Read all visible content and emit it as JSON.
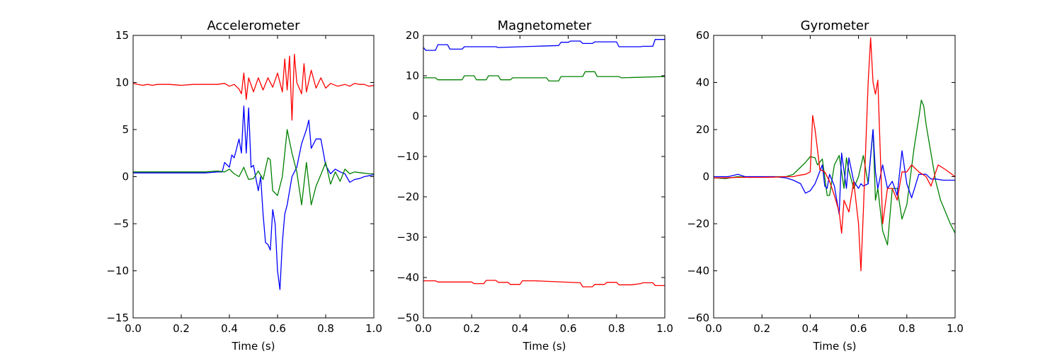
{
  "chart_data": [
    {
      "type": "line",
      "title": "Accelerometer",
      "xlabel": "Time (s)",
      "ylabel": "",
      "xlim": [
        0,
        1
      ],
      "ylim": [
        -15,
        15
      ],
      "xticks": [
        "0.0",
        "0.2",
        "0.4",
        "0.6",
        "0.8",
        "1.0"
      ],
      "yticks": [
        "15",
        "10",
        "5",
        "0",
        "−5",
        "−10",
        "−15"
      ],
      "grid": false,
      "series": [
        {
          "color": "#ff0000",
          "x": [
            0.0,
            0.02,
            0.04,
            0.06,
            0.08,
            0.1,
            0.15,
            0.2,
            0.25,
            0.3,
            0.35,
            0.38,
            0.4,
            0.42,
            0.44,
            0.45,
            0.46,
            0.47,
            0.48,
            0.5,
            0.52,
            0.54,
            0.56,
            0.58,
            0.6,
            0.62,
            0.63,
            0.64,
            0.65,
            0.66,
            0.67,
            0.68,
            0.7,
            0.71,
            0.72,
            0.74,
            0.76,
            0.78,
            0.8,
            0.82,
            0.85,
            0.88,
            0.9,
            0.92,
            0.94,
            0.96,
            0.98,
            1.0
          ],
          "y": [
            9.9,
            9.8,
            9.7,
            9.8,
            9.7,
            9.8,
            9.8,
            9.7,
            9.8,
            9.8,
            9.8,
            9.9,
            9.6,
            9.8,
            9.3,
            8.8,
            11.0,
            8.2,
            10.5,
            9.0,
            10.5,
            9.2,
            10.5,
            9.5,
            11.0,
            9.0,
            12.5,
            9.2,
            12.8,
            6.0,
            13.0,
            10.0,
            8.8,
            12.0,
            9.0,
            11.3,
            9.4,
            10.5,
            9.4,
            9.9,
            9.6,
            9.8,
            9.6,
            9.9,
            9.8,
            9.8,
            9.6,
            9.7
          ]
        },
        {
          "color": "#0000ff",
          "x": [
            0.0,
            0.05,
            0.1,
            0.15,
            0.2,
            0.25,
            0.3,
            0.35,
            0.37,
            0.38,
            0.4,
            0.41,
            0.42,
            0.44,
            0.45,
            0.46,
            0.47,
            0.48,
            0.49,
            0.5,
            0.52,
            0.53,
            0.54,
            0.55,
            0.56,
            0.57,
            0.58,
            0.59,
            0.6,
            0.61,
            0.62,
            0.63,
            0.64,
            0.65,
            0.66,
            0.68,
            0.7,
            0.72,
            0.73,
            0.74,
            0.76,
            0.78,
            0.8,
            0.82,
            0.84,
            0.86,
            0.88,
            0.9,
            0.92,
            0.94,
            0.96,
            0.98,
            1.0
          ],
          "y": [
            0.4,
            0.4,
            0.4,
            0.4,
            0.4,
            0.4,
            0.4,
            0.5,
            0.5,
            1.5,
            1.0,
            2.3,
            2.0,
            4.0,
            2.5,
            7.5,
            2.5,
            7.3,
            1.0,
            1.2,
            -1.5,
            0.0,
            -4.0,
            -7.0,
            -7.2,
            -7.8,
            -3.5,
            -5.0,
            -10.0,
            -12.0,
            -7.0,
            -4.0,
            -3.0,
            -1.5,
            0.0,
            1.0,
            3.5,
            5.0,
            6.0,
            3.0,
            4.0,
            4.0,
            1.2,
            0.3,
            0.8,
            0.5,
            0.3,
            -0.6,
            -0.3,
            -0.2,
            0.0,
            0.1,
            0.2
          ]
        },
        {
          "color": "#008000",
          "x": [
            0.0,
            0.05,
            0.1,
            0.15,
            0.2,
            0.25,
            0.3,
            0.35,
            0.38,
            0.4,
            0.42,
            0.44,
            0.46,
            0.47,
            0.48,
            0.5,
            0.52,
            0.54,
            0.56,
            0.57,
            0.58,
            0.6,
            0.62,
            0.64,
            0.66,
            0.68,
            0.7,
            0.72,
            0.74,
            0.76,
            0.78,
            0.8,
            0.82,
            0.84,
            0.86,
            0.88,
            0.9,
            0.92,
            0.95,
            0.98,
            1.0
          ],
          "y": [
            0.5,
            0.5,
            0.5,
            0.5,
            0.5,
            0.5,
            0.5,
            0.6,
            0.5,
            0.8,
            0.3,
            0.0,
            1.0,
            0.3,
            -0.3,
            -0.2,
            0.6,
            -0.3,
            2.0,
            1.8,
            -1.5,
            -2.0,
            0.0,
            5.0,
            2.5,
            0.5,
            -3.0,
            1.5,
            -3.0,
            -1.0,
            0.2,
            1.5,
            -0.8,
            0.5,
            -0.5,
            0.8,
            0.3,
            0.5,
            0.4,
            0.3,
            0.3
          ]
        }
      ]
    },
    {
      "type": "line",
      "title": "Magnetometer",
      "xlabel": "Time (s)",
      "ylabel": "",
      "xlim": [
        0,
        1
      ],
      "ylim": [
        -50,
        20
      ],
      "xticks": [
        "0.0",
        "0.2",
        "0.4",
        "0.6",
        "0.8",
        "1.0"
      ],
      "yticks": [
        "20",
        "10",
        "0",
        "−10",
        "−20",
        "−30",
        "−40",
        "−50"
      ],
      "grid": false,
      "series": [
        {
          "color": "#0000ff",
          "x": [
            0.0,
            0.01,
            0.05,
            0.06,
            0.1,
            0.11,
            0.16,
            0.17,
            0.3,
            0.31,
            0.56,
            0.57,
            0.6,
            0.61,
            0.65,
            0.66,
            0.7,
            0.71,
            0.8,
            0.81,
            0.9,
            0.91,
            0.95,
            0.96,
            1.0
          ],
          "y": [
            17.0,
            16.3,
            16.3,
            17.7,
            17.7,
            16.6,
            16.6,
            17.2,
            17.2,
            17.0,
            17.5,
            18.3,
            18.3,
            18.6,
            18.6,
            18.0,
            18.0,
            18.4,
            18.4,
            17.2,
            17.2,
            17.3,
            17.3,
            19.0,
            19.0
          ],
          "name": ""
        },
        {
          "color": "#008000",
          "x": [
            0.0,
            0.05,
            0.06,
            0.16,
            0.17,
            0.21,
            0.22,
            0.26,
            0.27,
            0.31,
            0.32,
            0.36,
            0.37,
            0.51,
            0.52,
            0.56,
            0.57,
            0.66,
            0.67,
            0.71,
            0.72,
            0.81,
            0.82,
            1.0
          ],
          "y": [
            9.5,
            9.5,
            9.0,
            9.0,
            10.0,
            10.0,
            9.0,
            9.0,
            10.0,
            10.0,
            9.0,
            9.0,
            9.5,
            9.5,
            8.7,
            8.7,
            9.8,
            9.8,
            11.0,
            11.0,
            9.8,
            9.8,
            9.5,
            9.8
          ]
        },
        {
          "color": "#ff0000",
          "x": [
            0.0,
            0.05,
            0.06,
            0.2,
            0.21,
            0.25,
            0.26,
            0.3,
            0.31,
            0.35,
            0.36,
            0.4,
            0.41,
            0.45,
            0.46,
            0.65,
            0.66,
            0.7,
            0.71,
            0.75,
            0.76,
            0.8,
            0.81,
            0.85,
            0.86,
            0.9,
            0.91,
            0.95,
            0.96,
            1.0
          ],
          "y": [
            -40.8,
            -40.8,
            -41.1,
            -41.1,
            -41.5,
            -41.5,
            -40.7,
            -40.7,
            -41.2,
            -41.2,
            -41.7,
            -41.7,
            -40.8,
            -40.8,
            -40.8,
            -41.3,
            -42.3,
            -42.3,
            -41.7,
            -41.7,
            -41.2,
            -41.2,
            -41.8,
            -41.8,
            -41.8,
            -41.5,
            -41.3,
            -41.3,
            -42.0,
            -42.0
          ]
        }
      ]
    },
    {
      "type": "line",
      "title": "Gyrometer",
      "xlabel": "Time (s)",
      "ylabel": "",
      "xlim": [
        0,
        1
      ],
      "ylim": [
        -60,
        60
      ],
      "xticks": [
        "0.0",
        "0.2",
        "0.4",
        "0.6",
        "0.8",
        "1.0"
      ],
      "yticks": [
        "60",
        "40",
        "20",
        "0",
        "−20",
        "−40",
        "−60"
      ],
      "grid": false,
      "series": [
        {
          "color": "#008000",
          "x": [
            0.0,
            0.05,
            0.1,
            0.15,
            0.2,
            0.25,
            0.3,
            0.33,
            0.35,
            0.38,
            0.4,
            0.42,
            0.43,
            0.45,
            0.47,
            0.48,
            0.5,
            0.52,
            0.54,
            0.55,
            0.56,
            0.58,
            0.6,
            0.62,
            0.64,
            0.66,
            0.67,
            0.68,
            0.7,
            0.72,
            0.74,
            0.76,
            0.78,
            0.8,
            0.83,
            0.85,
            0.86,
            0.87,
            0.88,
            0.9,
            0.92,
            0.94,
            0.96,
            0.98,
            1.0
          ],
          "y": [
            -0.5,
            -0.8,
            0.0,
            -0.3,
            -0.2,
            0.0,
            0.0,
            1.0,
            3.0,
            6.0,
            8.5,
            8.0,
            5.0,
            7.5,
            -8.0,
            -8.0,
            5.0,
            9.0,
            -5.0,
            8.0,
            2.5,
            -5.0,
            0.0,
            9.0,
            -3.0,
            20.0,
            -10.0,
            -5.0,
            -23.0,
            -29.0,
            -5.0,
            -5.0,
            -18.0,
            -12.0,
            12.0,
            25.0,
            32.5,
            30.0,
            22.0,
            10.0,
            -2.0,
            -10.0,
            -15.0,
            -20.0,
            -24.0
          ]
        },
        {
          "color": "#0000ff",
          "x": [
            0.0,
            0.03,
            0.06,
            0.1,
            0.13,
            0.2,
            0.25,
            0.3,
            0.33,
            0.36,
            0.38,
            0.4,
            0.42,
            0.45,
            0.46,
            0.47,
            0.48,
            0.5,
            0.52,
            0.53,
            0.55,
            0.56,
            0.58,
            0.6,
            0.61,
            0.62,
            0.64,
            0.66,
            0.67,
            0.68,
            0.7,
            0.72,
            0.74,
            0.76,
            0.78,
            0.8,
            0.82,
            0.85,
            0.88,
            0.9,
            0.92,
            0.95,
            1.0
          ],
          "y": [
            0.0,
            0.0,
            0.0,
            1.0,
            0.0,
            0.0,
            0.0,
            -0.5,
            -1.5,
            -3.0,
            -7.0,
            -6.0,
            -3.0,
            5.0,
            -4.0,
            -5.0,
            1.0,
            -4.0,
            -16.0,
            10.0,
            -5.0,
            8.0,
            -2.0,
            -5.0,
            -3.0,
            -4.0,
            -3.0,
            20.0,
            2.0,
            -5.0,
            5.0,
            -5.0,
            -2.0,
            -8.0,
            11.0,
            -3.0,
            -9.0,
            1.0,
            1.0,
            -1.0,
            -1.0,
            -1.5,
            -1.5
          ]
        },
        {
          "color": "#ff0000",
          "x": [
            0.0,
            0.05,
            0.1,
            0.15,
            0.2,
            0.25,
            0.3,
            0.33,
            0.35,
            0.38,
            0.4,
            0.41,
            0.42,
            0.44,
            0.46,
            0.48,
            0.5,
            0.52,
            0.53,
            0.54,
            0.56,
            0.58,
            0.6,
            0.61,
            0.62,
            0.64,
            0.65,
            0.66,
            0.67,
            0.68,
            0.7,
            0.72,
            0.74,
            0.76,
            0.78,
            0.8,
            0.82,
            0.85,
            0.88,
            0.9,
            0.93,
            0.96,
            1.0
          ],
          "y": [
            -0.5,
            -0.5,
            -0.3,
            -0.3,
            -0.3,
            -0.2,
            0.0,
            0.0,
            0.5,
            1.0,
            2.0,
            26.0,
            20.0,
            3.0,
            2.0,
            -2.0,
            -8.0,
            -15.0,
            -24.0,
            -10.0,
            -15.0,
            -2.0,
            -20.0,
            -40.0,
            -15.0,
            40.0,
            59.0,
            40.0,
            35.0,
            41.0,
            -20.0,
            -5.0,
            -5.0,
            -10.0,
            2.0,
            2.0,
            5.0,
            2.0,
            0.0,
            -4.0,
            5.0,
            3.0,
            0.0
          ]
        }
      ]
    }
  ]
}
